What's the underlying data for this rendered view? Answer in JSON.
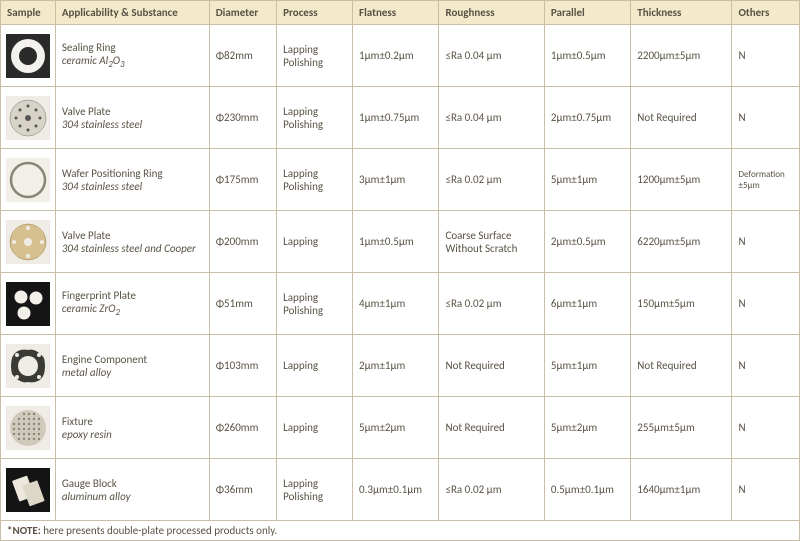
{
  "colors": {
    "header_bg": "#f3eacb",
    "border": "#c9bfa8",
    "text": "#5a5245"
  },
  "columns": [
    "Sample",
    "Applicability & Substance",
    "Diameter",
    "Process",
    "Flatness",
    "Roughness",
    "Parallel",
    "Thickness",
    "Others"
  ],
  "rows": [
    {
      "icon": "ring-plain",
      "name": "Sealing Ring",
      "sub_html": "ceramic Al<sub>2</sub>O<sub>3</sub>",
      "diameter": "Φ82mm",
      "process": "Lapping Polishing",
      "flatness": "1μm±0.2μm",
      "roughness": "≤Ra 0.04 μm",
      "parallel": "1μm±0.5μm",
      "thickness": "2200μm±5μm",
      "others": "N"
    },
    {
      "icon": "disc-holes",
      "name": "Valve Plate",
      "sub_html": "304 stainless steel",
      "diameter": "Φ230mm",
      "process": "Lapping Polishing",
      "flatness": "1μm±0.75μm",
      "roughness": "≤Ra 0.04 μm",
      "parallel": "2μm±0.75μm",
      "thickness": "Not Required",
      "others": "N"
    },
    {
      "icon": "thin-ring",
      "name": "Wafer Positioning Ring",
      "sub_html": "304 stainless steel",
      "diameter": "Φ175mm",
      "process": "Lapping Polishing",
      "flatness": "3μm±1μm",
      "roughness": "≤Ra 0.02 μm",
      "parallel": "5μm±1μm",
      "thickness": "1200μm±5μm",
      "others": "Deformation ±5μm"
    },
    {
      "icon": "copper-plate",
      "name": "Valve Plate",
      "sub_html": "304 stainless steel and Cooper",
      "diameter": "Φ200mm",
      "process": "Lapping",
      "flatness": "1μm±0.5μm",
      "roughness": "Coarse Surface Without Scratch",
      "parallel": "2μm±0.5μm",
      "thickness": "6220μm±5μm",
      "others": "N"
    },
    {
      "icon": "three-dots",
      "name": "Fingerprint Plate",
      "sub_html": "ceramic ZrO<sub>2</sub>",
      "diameter": "Φ51mm",
      "process": "Lapping Polishing",
      "flatness": "4μm±1μm",
      "roughness": "≤Ra 0.02 μm",
      "parallel": "6μm±1μm",
      "thickness": "150μm±5μm",
      "others": "N"
    },
    {
      "icon": "engine-part",
      "name": "Engine Component",
      "sub_html": "metal alloy",
      "diameter": "Φ103mm",
      "process": "Lapping",
      "flatness": "2μm±1μm",
      "roughness": "Not Required",
      "parallel": "5μm±1μm",
      "thickness": "Not Required",
      "others": "N"
    },
    {
      "icon": "fixture-grid",
      "name": "Fixture",
      "sub_html": "epoxy resin",
      "diameter": "Φ260mm",
      "process": "Lapping",
      "flatness": "5μm±2μm",
      "roughness": "Not Required",
      "parallel": "5μm±2μm",
      "thickness": "255μm±5μm",
      "others": "N"
    },
    {
      "icon": "gauge-block",
      "name": "Gauge Block",
      "sub_html": "aluminum alloy",
      "diameter": "Φ36mm",
      "process": "Lapping Polishing",
      "flatness": "0.3μm±0.1μm",
      "roughness": "≤Ra 0.02 μm",
      "parallel": "0.5μm±0.1μm",
      "thickness": "1640μm±1μm",
      "others": "N"
    }
  ],
  "note_prefix": "*NOTE:",
  "note_text": " here presents double-plate processed products only.",
  "others_small_font_row_index": 2
}
